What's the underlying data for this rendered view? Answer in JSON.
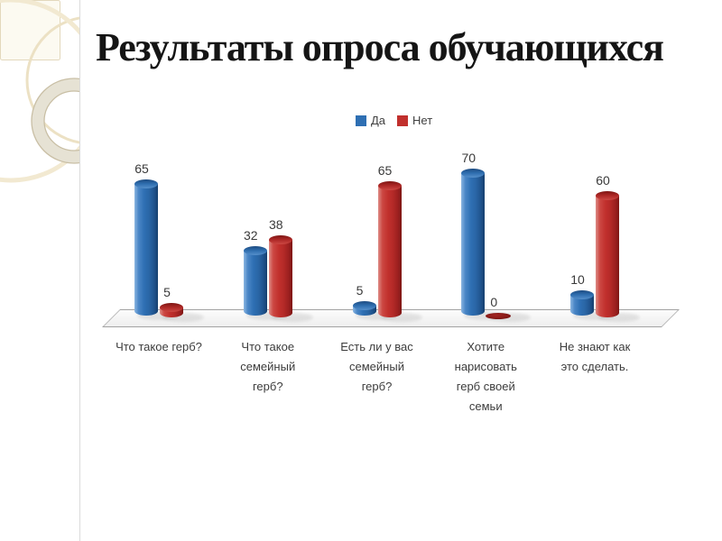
{
  "slide": {
    "title": "Результаты опроса обучающихся"
  },
  "chart_data": {
    "type": "bar",
    "subtype": "3d-cylinder",
    "title": "",
    "xlabel": "",
    "ylabel": "",
    "ylim": [
      0,
      70
    ],
    "gridlines": false,
    "legend_position": "top-center",
    "value_labels_shown": true,
    "categories": [
      "Что такое герб?",
      "Что такое семейный герб?",
      "Есть ли у вас семейный герб?",
      "Хотите нарисовать герб своей семьи",
      "Не знают как это сделать."
    ],
    "category_display_lines": [
      [
        "Что такое герб?"
      ],
      [
        "Что такое",
        "семейный",
        "герб?"
      ],
      [
        "Есть ли у вас",
        "семейный",
        "герб?"
      ],
      [
        "Хотите",
        "нарисовать",
        "герб своей",
        "семьи"
      ],
      [
        "Не знают как",
        "это сделать."
      ]
    ],
    "series": [
      {
        "name": "Да",
        "color": "#2E6FB3",
        "values": [
          65,
          32,
          5,
          70,
          10
        ]
      },
      {
        "name": "Нет",
        "color": "#C1302D",
        "values": [
          5,
          38,
          65,
          0,
          60
        ]
      }
    ]
  }
}
